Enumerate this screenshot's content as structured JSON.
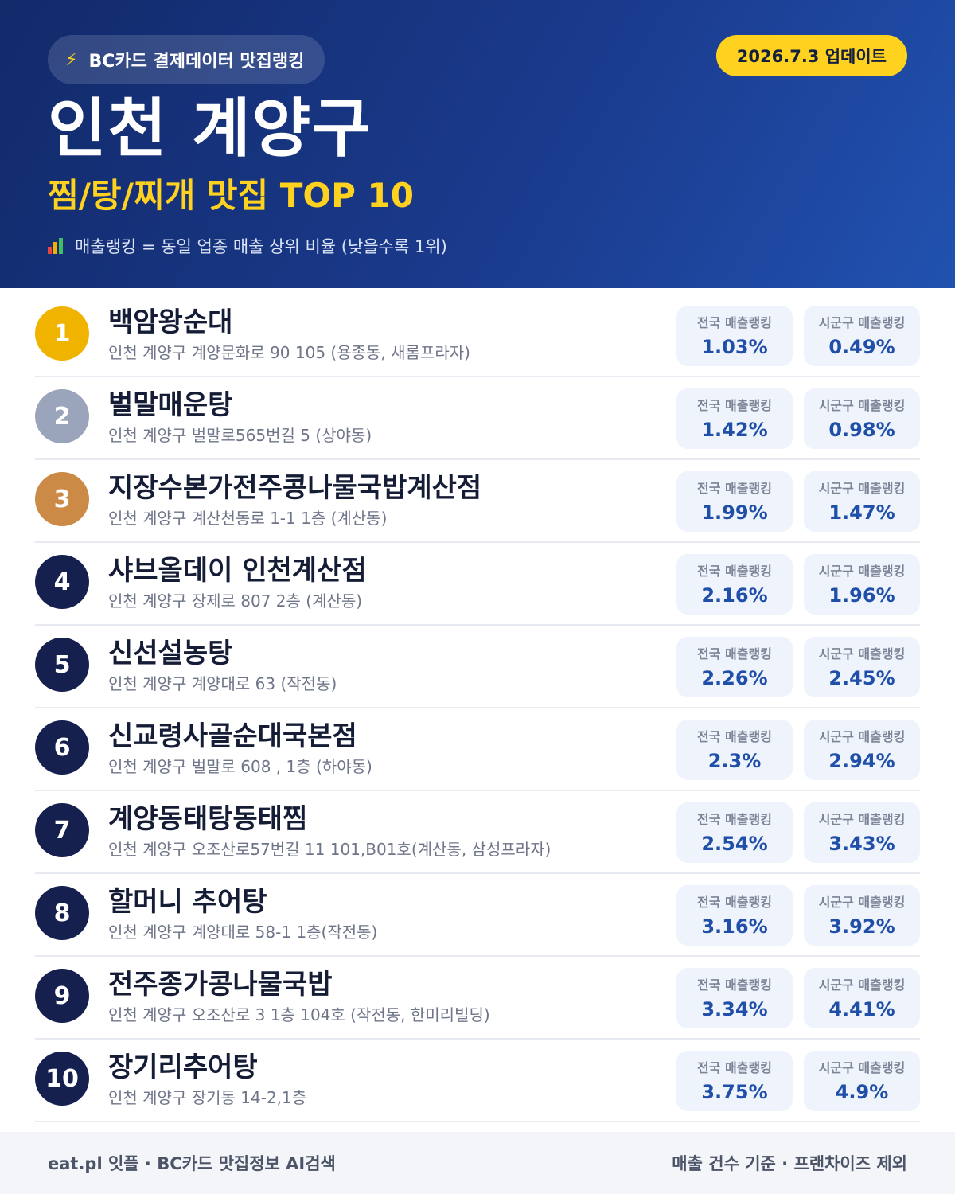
{
  "header": {
    "badge_text": "BC카드 결제데이터 맛집랭킹",
    "badge_icon": "lightning-icon",
    "update_text": "2026.7.3 업데이트",
    "title": "인천 계양구",
    "subtitle": "찜/탕/찌개 맛집 TOP 10",
    "note_icon": "bar-chart-icon",
    "note_text": "매출랭킹 = 동일 업종 매출 상위 비율 (낮을수록 1위)"
  },
  "colors": {
    "gold": "#F0B400",
    "silver": "#9AA5BB",
    "bronze": "#CC8A47",
    "navy": "#15204E",
    "accent_yellow": "#FFD21F",
    "value_blue": "#1F4FA8"
  },
  "stat_labels": {
    "national": "전국 매출랭킹",
    "local": "시군구 매출랭킹"
  },
  "restaurants": [
    {
      "rank": "1",
      "name": "백암왕순대",
      "address": "인천 계양구 계양문화로 90 105 (용종동, 새롬프라자)",
      "national": "1.03%",
      "local": "0.49%"
    },
    {
      "rank": "2",
      "name": "벌말매운탕",
      "address": "인천 계양구 벌말로565번길 5 (상야동)",
      "national": "1.42%",
      "local": "0.98%"
    },
    {
      "rank": "3",
      "name": "지장수본가전주콩나물국밥계산점",
      "address": "인천 계양구 계산천동로 1-1 1층 (계산동)",
      "national": "1.99%",
      "local": "1.47%"
    },
    {
      "rank": "4",
      "name": "샤브올데이 인천계산점",
      "address": "인천 계양구 장제로 807 2층 (계산동)",
      "national": "2.16%",
      "local": "1.96%"
    },
    {
      "rank": "5",
      "name": "신선설농탕",
      "address": "인천 계양구 계양대로 63 (작전동)",
      "national": "2.26%",
      "local": "2.45%"
    },
    {
      "rank": "6",
      "name": "신교령사골순대국본점",
      "address": "인천 계양구 벌말로 608 , 1층 (하야동)",
      "national": "2.3%",
      "local": "2.94%"
    },
    {
      "rank": "7",
      "name": "계양동태탕동태찜",
      "address": "인천 계양구 오조산로57번길 11 101,B01호(계산동, 삼성프라자)",
      "national": "2.54%",
      "local": "3.43%"
    },
    {
      "rank": "8",
      "name": "할머니 추어탕",
      "address": "인천 계양구 계양대로 58-1 1층(작전동)",
      "national": "3.16%",
      "local": "3.92%"
    },
    {
      "rank": "9",
      "name": "전주종가콩나물국밥",
      "address": "인천 계양구 오조산로 3 1층 104호 (작전동, 한미리빌딩)",
      "national": "3.34%",
      "local": "4.41%"
    },
    {
      "rank": "10",
      "name": "장기리추어탕",
      "address": "인천 계양구 장기동 14-2,1층",
      "national": "3.75%",
      "local": "4.9%"
    }
  ],
  "footer": {
    "left": "eat.pl 잇플 · BC카드 맛집정보 AI검색",
    "right": "매출 건수 기준 · 프랜차이즈 제외"
  }
}
